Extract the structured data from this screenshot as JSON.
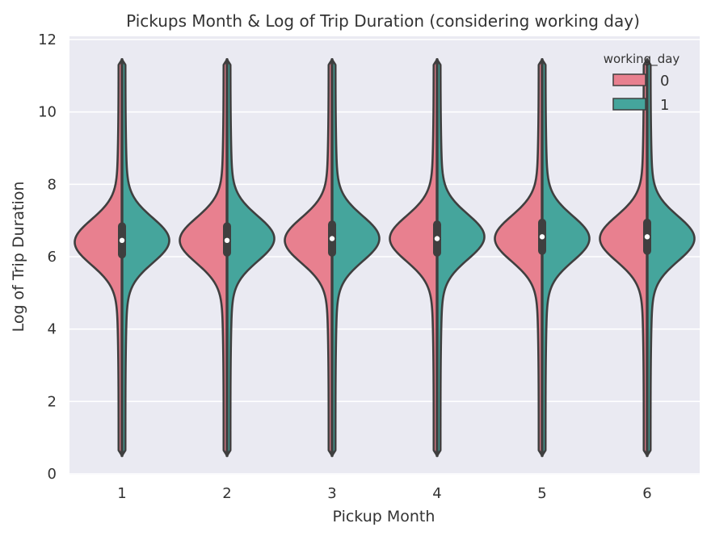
{
  "chart_data": {
    "type": "violin",
    "split": true,
    "title": "Pickups Month & Log of Trip Duration (considering working day)",
    "xlabel": "Pickup Month",
    "ylabel": "Log of Trip Duration",
    "categories": [
      "1",
      "2",
      "3",
      "4",
      "5",
      "6"
    ],
    "ylim": [
      0,
      12
    ],
    "yticks": [
      0,
      2,
      4,
      6,
      8,
      10,
      12
    ],
    "grid": true,
    "legend": {
      "title": "working_day",
      "placement": "top-right",
      "entries": [
        {
          "label": "0",
          "color": "#e8808f"
        },
        {
          "label": "1",
          "color": "#45a59c"
        }
      ]
    },
    "series": [
      {
        "name": "0",
        "color": "#e8808f",
        "max": [
          11.45,
          11.45,
          11.45,
          11.45,
          11.45,
          11.45
        ],
        "min": [
          0.5,
          0.5,
          0.5,
          0.5,
          0.5,
          0.5
        ],
        "peak": [
          6.4,
          6.45,
          6.45,
          6.5,
          6.5,
          6.5
        ]
      },
      {
        "name": "1",
        "color": "#45a59c",
        "max": [
          11.45,
          11.45,
          11.45,
          11.45,
          11.45,
          11.45
        ],
        "min": [
          0.5,
          0.5,
          0.5,
          0.5,
          0.5,
          0.5
        ],
        "peak": [
          6.45,
          6.5,
          6.5,
          6.55,
          6.5,
          6.5
        ]
      }
    ],
    "median": [
      6.45,
      6.45,
      6.5,
      6.5,
      6.55,
      6.55
    ],
    "q1": [
      5.95,
      6.0,
      6.0,
      6.0,
      6.05,
      6.05
    ],
    "q3": [
      6.95,
      6.95,
      7.0,
      7.0,
      7.05,
      7.05
    ],
    "outlier_max": [
      11.45,
      11.45,
      11.45,
      11.45,
      11.45,
      11.45
    ]
  },
  "colors": {
    "background": "#eaeaf2",
    "grid": "#ffffff",
    "outline": "#3f3f3f",
    "text": "#333333"
  }
}
